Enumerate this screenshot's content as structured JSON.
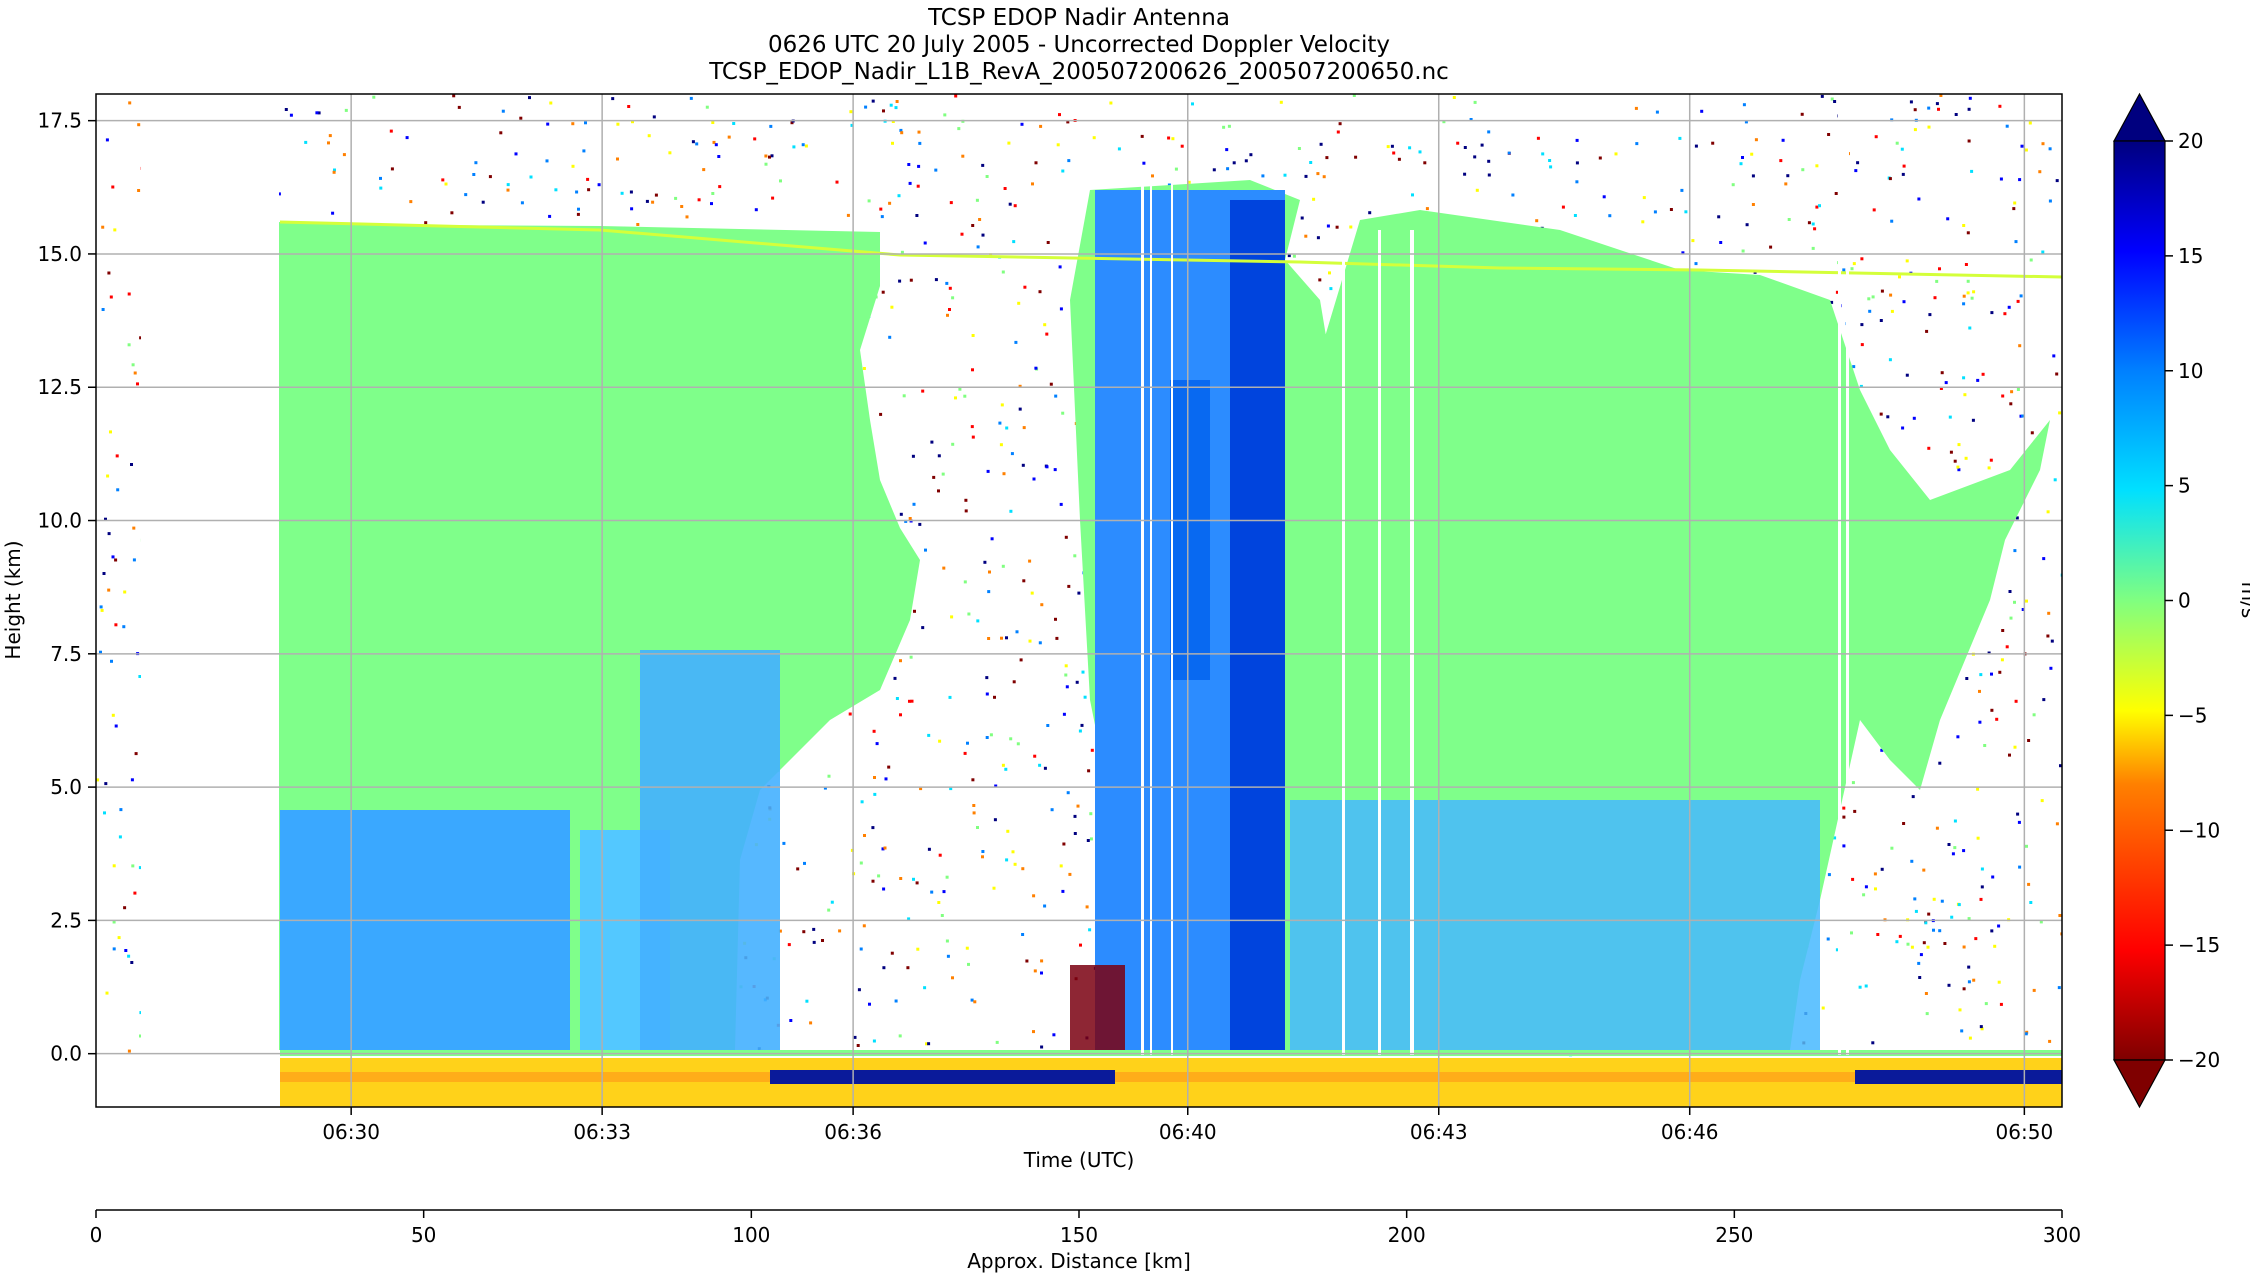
{
  "chart_data": {
    "type": "heatmap",
    "title": {
      "line1": "TCSP EDOP Nadir Antenna",
      "line2": "0626 UTC 20 July 2005 - Uncorrected Doppler Velocity",
      "line3": "TCSP_EDOP_Nadir_L1B_RevA_200507200626_200507200650.nc"
    },
    "xlabel": "Time (UTC)",
    "ylabel": "Height (km)",
    "x_tick_labels": [
      "06:30",
      "06:33",
      "06:36",
      "06:40",
      "06:43",
      "06:46",
      "06:50"
    ],
    "x_tick_minutes": [
      30,
      33,
      36,
      40,
      43,
      46,
      50
    ],
    "xlim_minutes": [
      26.95,
      50.45
    ],
    "ylim": [
      -1.0,
      18.0
    ],
    "y_ticks": [
      0.0,
      2.5,
      5.0,
      7.5,
      10.0,
      12.5,
      15.0,
      17.5
    ],
    "y_tick_labels": [
      "0.0",
      "2.5",
      "5.0",
      "7.5",
      "10.0",
      "12.5",
      "15.0",
      "17.5"
    ],
    "grid": true,
    "distance_axis": {
      "label": "Approx. Distance [km]",
      "range": [
        0,
        300
      ],
      "ticks": [
        0,
        50,
        100,
        150,
        200,
        250,
        300
      ],
      "tick_labels": [
        "0",
        "50",
        "100",
        "150",
        "200",
        "250",
        "300"
      ]
    },
    "colorbar": {
      "label": "m/s",
      "range": [
        -20,
        20
      ],
      "ticks": [
        -20,
        -15,
        -10,
        -5,
        0,
        5,
        10,
        15,
        20
      ],
      "tick_labels": [
        "−20",
        "−15",
        "−10",
        "−5",
        "0",
        "5",
        "10",
        "15",
        "20"
      ],
      "extend": "both",
      "colormap": "jet_r",
      "stops": [
        "#7f0000",
        "#ff0000",
        "#ff8000",
        "#ffff00",
        "#80ff80",
        "#00e0ff",
        "#0080ff",
        "#0000ff",
        "#00007f"
      ]
    },
    "features": {
      "data_gap_minutes": [
        27.45,
        29.1
      ],
      "cloud_top_km": 15.5,
      "surface_km": 0.0,
      "strong_updraft_column_minutes": [
        38.7,
        41.0
      ],
      "max_velocity_ms": 20,
      "min_velocity_ms": -20
    }
  }
}
